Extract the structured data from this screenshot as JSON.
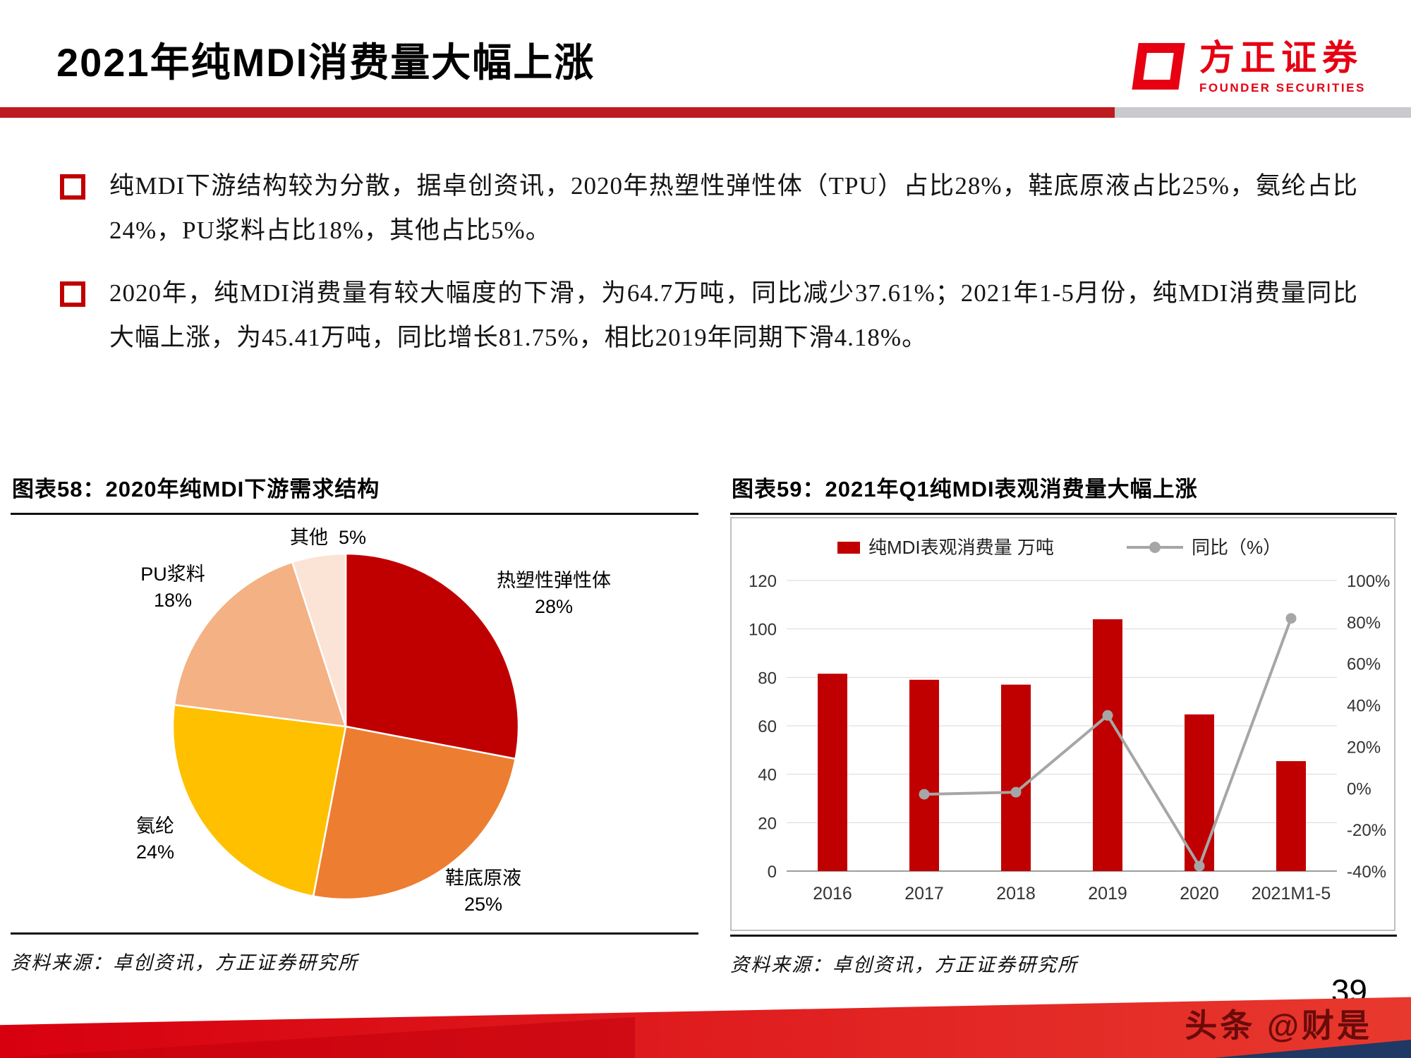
{
  "page": {
    "title": "2021年纯MDI消费量大幅上涨",
    "page_number": "39",
    "watermark": "头条 @财是"
  },
  "logo": {
    "name": "方正证券",
    "subtitle": "FOUNDER SECURITIES"
  },
  "colors": {
    "brand_red": "#E60012",
    "divider_red": "#BE1B21",
    "divider_gray": "#C9CACD",
    "bar_red": "#C00000",
    "line_gray": "#A6A6A6"
  },
  "bullets": [
    {
      "text": "纯MDI下游结构较为分散，据卓创资讯，2020年热塑性弹性体（TPU）占比28%，鞋底原液占比25%，氨纶占比24%，PU浆料占比18%，其他占比5%。"
    },
    {
      "text": "2020年，纯MDI消费量有较大幅度的下滑，为64.7万吨，同比减少37.61%；2021年1-5月份，纯MDI消费量同比大幅上涨，为45.41万吨，同比增长81.75%，相比2019年同期下滑4.18%。"
    }
  ],
  "figures": {
    "left": {
      "title": "图表58：2020年纯MDI下游需求结构",
      "source": "资料来源：卓创资讯，方正证券研究所"
    },
    "right": {
      "title": "图表59：2021年Q1纯MDI表观消费量大幅上涨",
      "source": "资料来源：卓创资讯，方正证券研究所"
    }
  },
  "chart_data": [
    {
      "type": "pie",
      "title": "2020年纯MDI下游需求结构",
      "start_angle": "12-oclock",
      "direction": "clockwise",
      "slices": [
        {
          "label": "热塑性弹性体",
          "value": 28,
          "pct": "28%",
          "color": "#C00000"
        },
        {
          "label": "鞋底原液",
          "value": 25,
          "pct": "25%",
          "color": "#ED7D31"
        },
        {
          "label": "氨纶",
          "value": 24,
          "pct": "24%",
          "color": "#FFC000"
        },
        {
          "label": "PU浆料",
          "value": 18,
          "pct": "18%",
          "color": "#F4B183"
        },
        {
          "label": "其他",
          "value": 5,
          "pct": "5%",
          "color": "#FBE3D5"
        }
      ]
    },
    {
      "type": "bar+line",
      "title": "2021年Q1纯MDI表观消费量大幅上涨",
      "categories": [
        "2016",
        "2017",
        "2018",
        "2019",
        "2020",
        "2021M1-5"
      ],
      "series": [
        {
          "name": "纯MDI表观消费量 万吨",
          "type": "bar",
          "axis": "left",
          "color": "#C00000",
          "values": [
            81.5,
            79,
            77,
            104,
            64.7,
            45.41
          ]
        },
        {
          "name": "同比（%）",
          "type": "line",
          "axis": "right",
          "color": "#A6A6A6",
          "values": [
            null,
            -3,
            -2,
            35,
            -37.61,
            81.75
          ]
        }
      ],
      "left_axis": {
        "min": 0,
        "max": 120,
        "step": 20,
        "ticks": [
          "0",
          "20",
          "40",
          "60",
          "80",
          "100",
          "120"
        ]
      },
      "right_axis": {
        "min": -40,
        "max": 100,
        "step": 20,
        "ticks": [
          "-40%",
          "-20%",
          "0%",
          "20%",
          "40%",
          "60%",
          "80%",
          "100%"
        ]
      },
      "legend_position": "top",
      "grid": true
    }
  ]
}
